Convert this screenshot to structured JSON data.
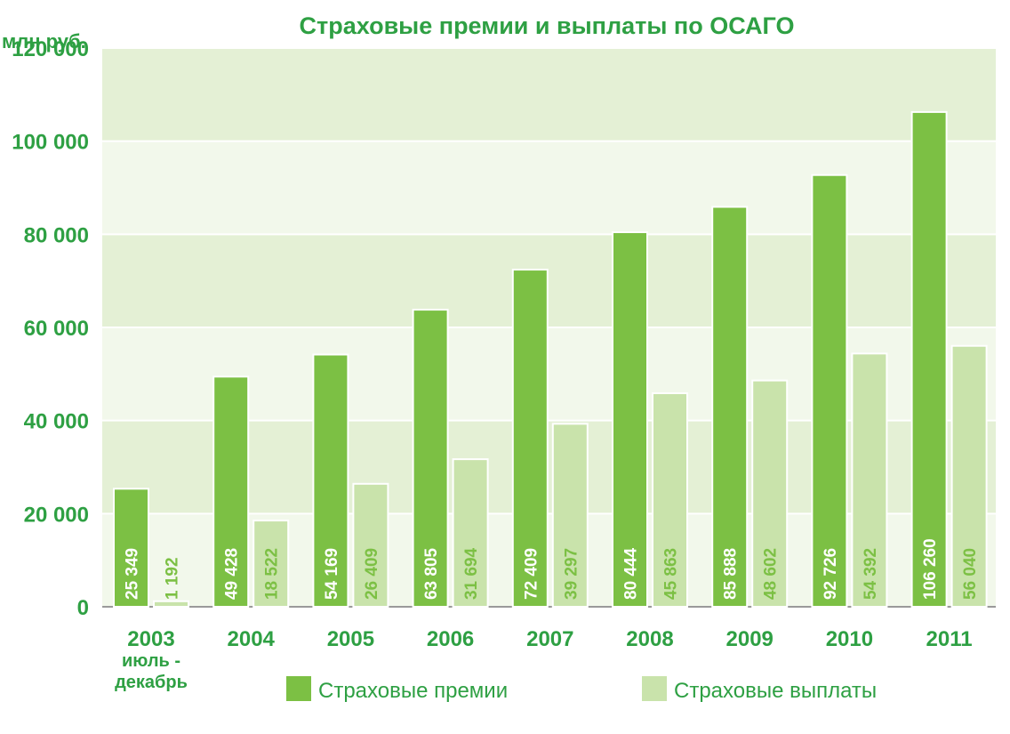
{
  "chart_data": {
    "type": "bar",
    "title": "Страховые премии и выплаты по ОСАГО",
    "ylabel": "млн руб.",
    "ylim": [
      0,
      120000
    ],
    "yticks": [
      "0",
      "20 000",
      "40 000",
      "60 000",
      "80 000",
      "100 000",
      "120 000"
    ],
    "yticks_values": [
      0,
      20000,
      40000,
      60000,
      80000,
      100000,
      120000
    ],
    "categories": [
      "2003",
      "2004",
      "2005",
      "2006",
      "2007",
      "2008",
      "2009",
      "2010",
      "2011"
    ],
    "category_sublabels": [
      "июль -",
      "декабрь"
    ],
    "series": [
      {
        "name": "Страховые премии",
        "color": "#7cc044",
        "values": [
          25349,
          49428,
          54169,
          63805,
          72409,
          80444,
          85888,
          92726,
          106260
        ],
        "labels": [
          "25 349",
          "49 428",
          "54 169",
          "63 805",
          "72 409",
          "80 444",
          "85 888",
          "92 726",
          "106 260"
        ]
      },
      {
        "name": "Страховые выплаты",
        "color": "#c9e3ab",
        "values": [
          1192,
          18522,
          26409,
          31694,
          39297,
          45863,
          48602,
          54392,
          56040
        ],
        "labels": [
          "1 192",
          "18 522",
          "26 409",
          "31 694",
          "39 297",
          "45 863",
          "48 602",
          "54 392",
          "56 040"
        ]
      }
    ],
    "grid": true,
    "legend_position": "bottom"
  }
}
